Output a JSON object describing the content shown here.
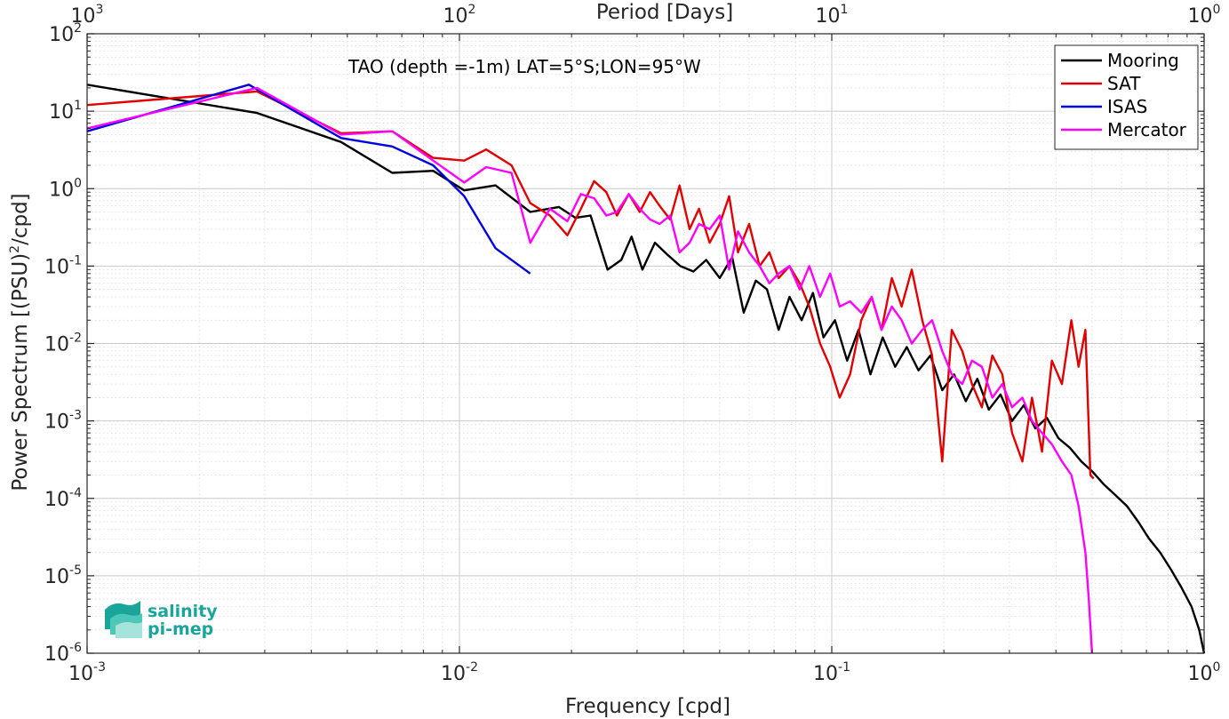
{
  "chart_data": {
    "type": "line",
    "title": "TAO (depth =-1m) LAT=5°S;LON=95°W",
    "xlabel": "Frequency [cpd]",
    "ylabel_base": "Power Spectrum [(PSU)",
    "ylabel_sup": "2",
    "ylabel_tail": "/cpd]",
    "top_xlabel": "Period [Days]",
    "xscale": "log",
    "yscale": "log",
    "xlim": [
      0.001,
      1
    ],
    "ylim": [
      1e-06,
      100
    ],
    "grid": true,
    "legend_position": "top-right",
    "x_ticks": [
      {
        "value": 0.001,
        "base": "10",
        "exp": "-3"
      },
      {
        "value": 0.01,
        "base": "10",
        "exp": "-2"
      },
      {
        "value": 0.1,
        "base": "10",
        "exp": "-1"
      },
      {
        "value": 1,
        "base": "10",
        "exp": "0"
      }
    ],
    "top_ticks": [
      {
        "value": 1000,
        "base": "10",
        "exp": "3"
      },
      {
        "value": 100,
        "base": "10",
        "exp": "2"
      },
      {
        "value": 10,
        "base": "10",
        "exp": "1"
      },
      {
        "value": 1,
        "base": "10",
        "exp": "0"
      }
    ],
    "y_ticks": [
      {
        "value": 1e-06,
        "base": "10",
        "exp": "-6"
      },
      {
        "value": 1e-05,
        "base": "10",
        "exp": "-5"
      },
      {
        "value": 0.0001,
        "base": "10",
        "exp": "-4"
      },
      {
        "value": 0.001,
        "base": "10",
        "exp": "-3"
      },
      {
        "value": 0.01,
        "base": "10",
        "exp": "-2"
      },
      {
        "value": 0.1,
        "base": "10",
        "exp": "-1"
      },
      {
        "value": 1,
        "base": "10",
        "exp": "0"
      },
      {
        "value": 10,
        "base": "10",
        "exp": "1"
      },
      {
        "value": 100,
        "base": "10",
        "exp": "2"
      }
    ],
    "series": [
      {
        "name": "Mooring",
        "color": "#000000",
        "x": [
          0.001,
          0.00286,
          0.00481,
          0.0066,
          0.0085,
          0.0103,
          0.0125,
          0.0155,
          0.0185,
          0.0205,
          0.0225,
          0.025,
          0.0272,
          0.029,
          0.031,
          0.0335,
          0.0362,
          0.0392,
          0.0425,
          0.046,
          0.05,
          0.054,
          0.058,
          0.0625,
          0.067,
          0.072,
          0.077,
          0.083,
          0.089,
          0.095,
          0.102,
          0.11,
          0.118,
          0.127,
          0.137,
          0.148,
          0.159,
          0.171,
          0.184,
          0.198,
          0.213,
          0.229,
          0.246,
          0.264,
          0.284,
          0.305,
          0.328,
          0.352,
          0.378,
          0.406,
          0.436,
          0.468,
          0.502,
          0.539,
          0.578,
          0.62,
          0.665,
          0.712,
          0.762,
          0.815,
          0.87,
          0.925,
          0.97,
          1.0
        ],
        "y": [
          22,
          9.5,
          4.0,
          1.6,
          1.7,
          0.95,
          1.1,
          0.5,
          0.58,
          0.42,
          0.45,
          0.09,
          0.12,
          0.24,
          0.09,
          0.2,
          0.14,
          0.1,
          0.085,
          0.12,
          0.07,
          0.13,
          0.025,
          0.065,
          0.05,
          0.015,
          0.04,
          0.02,
          0.045,
          0.012,
          0.02,
          0.006,
          0.015,
          0.004,
          0.012,
          0.005,
          0.009,
          0.0045,
          0.007,
          0.0025,
          0.004,
          0.0018,
          0.0035,
          0.0014,
          0.0022,
          0.001,
          0.0016,
          0.0008,
          0.0011,
          0.0006,
          0.00045,
          0.0003,
          0.00022,
          0.00015,
          0.00011,
          8e-05,
          5e-05,
          3e-05,
          2e-05,
          1.2e-05,
          7e-06,
          4e-06,
          2e-06,
          1e-06
        ]
      },
      {
        "name": "SAT",
        "color": "#e00000",
        "x": [
          0.001,
          0.00286,
          0.00481,
          0.0066,
          0.0085,
          0.0103,
          0.0118,
          0.0138,
          0.0155,
          0.0175,
          0.0195,
          0.0212,
          0.023,
          0.0248,
          0.0265,
          0.0285,
          0.0305,
          0.0325,
          0.0345,
          0.0368,
          0.039,
          0.0415,
          0.044,
          0.047,
          0.05,
          0.053,
          0.056,
          0.06,
          0.064,
          0.068,
          0.072,
          0.077,
          0.082,
          0.087,
          0.093,
          0.099,
          0.105,
          0.112,
          0.12,
          0.128,
          0.136,
          0.145,
          0.154,
          0.164,
          0.175,
          0.186,
          0.198,
          0.21,
          0.224,
          0.238,
          0.253,
          0.27,
          0.287,
          0.305,
          0.325,
          0.345,
          0.367,
          0.39,
          0.415,
          0.44,
          0.46,
          0.48,
          0.495,
          0.505
        ],
        "y": [
          12,
          18,
          5.2,
          5.5,
          2.5,
          2.3,
          3.2,
          2.0,
          0.65,
          0.45,
          0.25,
          0.55,
          1.25,
          0.9,
          0.45,
          0.85,
          0.5,
          0.9,
          0.6,
          0.4,
          1.1,
          0.3,
          0.55,
          0.2,
          0.35,
          0.8,
          0.15,
          0.35,
          0.1,
          0.15,
          0.07,
          0.1,
          0.06,
          0.03,
          0.01,
          0.005,
          0.002,
          0.004,
          0.02,
          0.04,
          0.015,
          0.07,
          0.03,
          0.09,
          0.02,
          0.007,
          0.0003,
          0.015,
          0.008,
          0.003,
          0.0015,
          0.007,
          0.004,
          0.0007,
          0.0003,
          0.002,
          0.0004,
          0.006,
          0.003,
          0.02,
          0.005,
          0.015,
          0.0002,
          0.00018
        ]
      },
      {
        "name": "ISAS",
        "color": "#0000e0",
        "x": [
          0.001,
          0.00272,
          0.00481,
          0.0066,
          0.0085,
          0.0103,
          0.0125,
          0.0155
        ],
        "y": [
          5.5,
          22,
          4.5,
          3.5,
          2.0,
          0.8,
          0.17,
          0.08
        ]
      },
      {
        "name": "Mercator",
        "color": "#ff00ff",
        "x": [
          0.001,
          0.00286,
          0.00481,
          0.0066,
          0.0085,
          0.0103,
          0.0118,
          0.0138,
          0.0155,
          0.0175,
          0.0195,
          0.0212,
          0.023,
          0.0248,
          0.0265,
          0.0285,
          0.0305,
          0.0325,
          0.0345,
          0.0368,
          0.039,
          0.0415,
          0.044,
          0.047,
          0.05,
          0.053,
          0.056,
          0.06,
          0.064,
          0.068,
          0.072,
          0.077,
          0.082,
          0.087,
          0.093,
          0.099,
          0.105,
          0.112,
          0.12,
          0.128,
          0.136,
          0.145,
          0.154,
          0.164,
          0.175,
          0.186,
          0.198,
          0.21,
          0.224,
          0.238,
          0.253,
          0.27,
          0.287,
          0.305,
          0.325,
          0.345,
          0.367,
          0.39,
          0.415,
          0.44,
          0.46,
          0.48,
          0.49,
          0.5
        ],
        "y": [
          6.0,
          20,
          5.0,
          5.5,
          2.3,
          1.2,
          1.9,
          1.6,
          0.2,
          0.55,
          0.38,
          0.85,
          0.75,
          0.45,
          0.5,
          0.85,
          0.55,
          0.4,
          0.35,
          0.45,
          0.15,
          0.2,
          0.35,
          0.3,
          0.45,
          0.09,
          0.28,
          0.15,
          0.1,
          0.06,
          0.08,
          0.1,
          0.05,
          0.1,
          0.04,
          0.08,
          0.03,
          0.035,
          0.025,
          0.04,
          0.015,
          0.03,
          0.02,
          0.01,
          0.015,
          0.02,
          0.008,
          0.004,
          0.003,
          0.006,
          0.005,
          0.002,
          0.003,
          0.0015,
          0.002,
          0.001,
          0.0007,
          0.0005,
          0.0003,
          0.0002,
          8e-05,
          2e-05,
          5e-06,
          1e-06
        ]
      }
    ]
  },
  "logo": {
    "line1": "salinity",
    "line2": "pi-mep"
  }
}
